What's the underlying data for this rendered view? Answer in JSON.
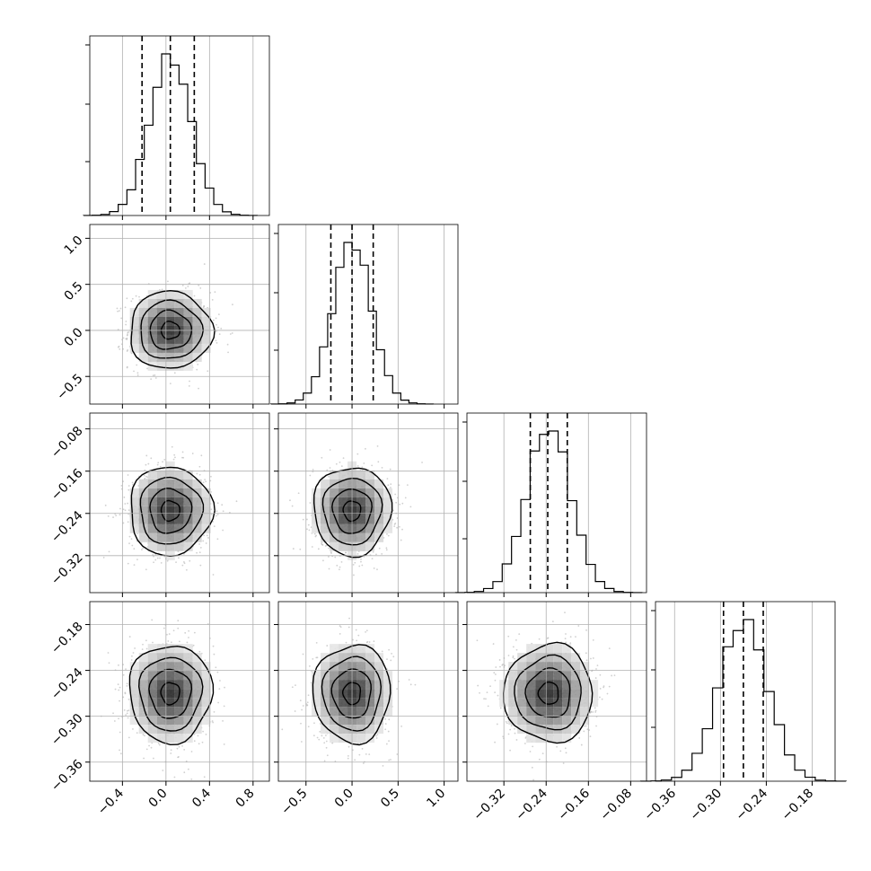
{
  "chart_data": {
    "type": "corner",
    "description_levels": "1D histograms on the diagonal with dashed quantile lines; 2D density panels with contours below",
    "parameters": [
      {
        "xlim": [
          -0.7,
          0.95
        ],
        "ticks": [
          -0.4,
          0.0,
          0.4,
          0.8
        ],
        "tick_labels": [
          "−0.4",
          "0.0",
          "0.4",
          "0.8"
        ],
        "mean": 0.04,
        "sd": 0.19,
        "quantiles": [
          -0.22,
          0.04,
          0.26
        ]
      },
      {
        "xlim": [
          -0.8,
          1.15
        ],
        "ticks": [
          -0.5,
          0.0,
          0.5,
          1.0
        ],
        "tick_labels": [
          "−0.5",
          "0.0",
          "0.5",
          "1.0"
        ],
        "mean": 0.0,
        "sd": 0.21,
        "quantiles": [
          -0.23,
          0.0,
          0.23
        ]
      },
      {
        "xlim": [
          -0.39,
          -0.05
        ],
        "ticks": [
          -0.32,
          -0.24,
          -0.16,
          -0.08
        ],
        "tick_labels": [
          "−0.32",
          "−0.24",
          "−0.16",
          "−0.08"
        ],
        "mean": -0.235,
        "sd": 0.042,
        "quantiles": [
          -0.27,
          -0.237,
          -0.2
        ]
      },
      {
        "xlim": [
          -0.385,
          -0.15
        ],
        "ticks": [
          -0.36,
          -0.3,
          -0.24,
          -0.18
        ],
        "tick_labels": [
          "−0.36",
          "−0.30",
          "−0.24",
          "−0.18"
        ],
        "mean": -0.27,
        "sd": 0.032,
        "quantiles": [
          -0.296,
          -0.27,
          -0.244
        ]
      }
    ],
    "histogram_bins": 20,
    "grid": true,
    "colors": {
      "density": "#000000",
      "points": "#b0b0b0",
      "grid": "#b0b0b0",
      "line": "#000000"
    }
  }
}
